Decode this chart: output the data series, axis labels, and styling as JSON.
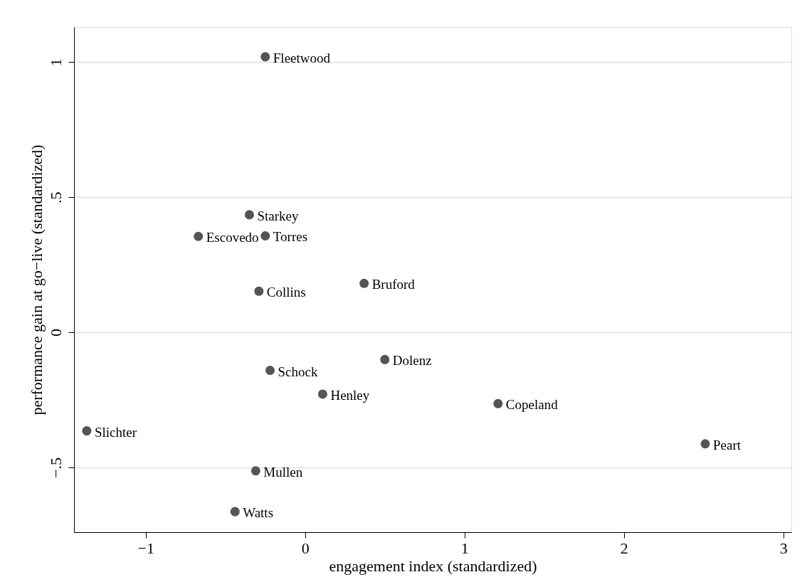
{
  "chart_data": {
    "type": "scatter",
    "xlabel": "engagement index (standardized)",
    "ylabel": "performance gain at go−live (standardized)",
    "x": [
      -0.25,
      -0.35,
      -0.67,
      -0.25,
      -0.29,
      0.37,
      0.5,
      -0.22,
      0.11,
      1.21,
      -1.37,
      -0.31,
      2.51,
      -0.44
    ],
    "values": [
      1.02,
      0.435,
      0.355,
      0.357,
      0.152,
      0.181,
      -0.101,
      -0.141,
      -0.229,
      -0.264,
      -0.365,
      -0.513,
      -0.413,
      -0.664
    ],
    "color": "#555555",
    "marker": "circle",
    "grid": "y",
    "xlim": [
      -1.45,
      3.05
    ],
    "ylim": [
      -0.74,
      1.13
    ],
    "xticks": [
      {
        "value": -1,
        "label": "−1"
      },
      0,
      1,
      2,
      3
    ],
    "yticks": [
      {
        "value": -0.5,
        "label": "−.5"
      },
      0,
      {
        "value": 0.5,
        "label": ".5"
      },
      1
    ],
    "annotations": [
      {
        "text": "Fleetwood",
        "x": -0.25,
        "y": 1.02
      },
      {
        "text": "Starkey",
        "x": -0.35,
        "y": 0.435
      },
      {
        "text": "Escovedo",
        "x": -0.67,
        "y": 0.355
      },
      {
        "text": "Torres",
        "x": -0.25,
        "y": 0.357
      },
      {
        "text": "Collins",
        "x": -0.29,
        "y": 0.152
      },
      {
        "text": "Bruford",
        "x": 0.37,
        "y": 0.181
      },
      {
        "text": "Dolenz",
        "x": 0.5,
        "y": -0.101
      },
      {
        "text": "Schock",
        "x": -0.22,
        "y": -0.141
      },
      {
        "text": "Henley",
        "x": 0.11,
        "y": -0.229
      },
      {
        "text": "Copeland",
        "x": 1.21,
        "y": -0.264
      },
      {
        "text": "Slichter",
        "x": -1.37,
        "y": -0.365
      },
      {
        "text": "Mullen",
        "x": -0.31,
        "y": -0.513
      },
      {
        "text": "Peart",
        "x": 2.51,
        "y": -0.413
      },
      {
        "text": "Watts",
        "x": -0.44,
        "y": -0.664
      }
    ]
  }
}
